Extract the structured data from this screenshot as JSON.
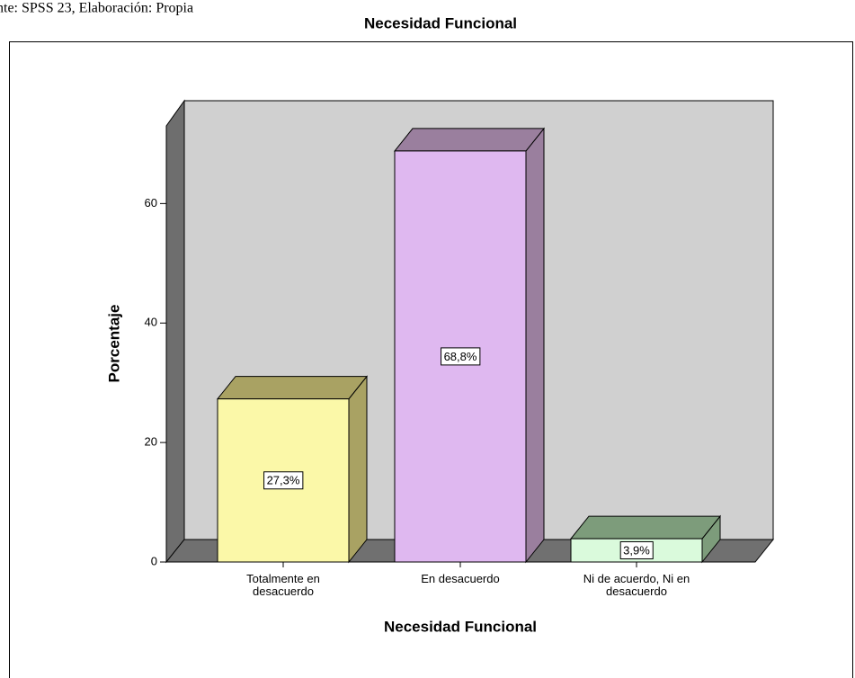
{
  "source_note": "nte: SPSS 23, Elaboración: Propia",
  "chart_data": {
    "type": "bar3d",
    "title": "Necesidad Funcional",
    "categories": [
      "Totalmente en desacuerdo",
      "En desacuerdo",
      "Ni de acuerdo, Ni en desacuerdo"
    ],
    "values": [
      27.3,
      68.8,
      3.9
    ],
    "value_labels": [
      "27,3%",
      "68,8%",
      "3,9%"
    ],
    "colors": [
      "#fbf8a8",
      "#dfb8f0",
      "#dafadc"
    ],
    "side_colors": [
      "#a9a263",
      "#9a7f9e",
      "#7d9c7b"
    ],
    "ylabel": "Porcentaje",
    "xlabel": "Necesidad Funcional",
    "ylim": [
      0,
      73
    ],
    "yticks": [
      0,
      20,
      40,
      60
    ],
    "grid": false
  }
}
